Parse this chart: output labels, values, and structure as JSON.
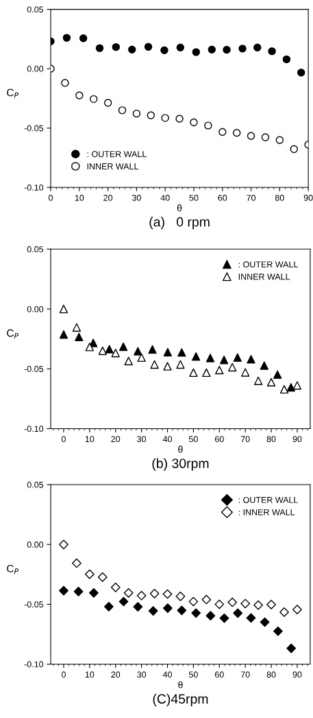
{
  "chart_data": [
    {
      "type": "scatter",
      "title": "(a)   0 rpm",
      "xlabel": "θ",
      "ylabel": "C$_{P}$",
      "xlim": [
        0,
        90
      ],
      "ylim": [
        -0.1,
        0.05
      ],
      "xticks": [
        0,
        10,
        20,
        30,
        40,
        50,
        60,
        70,
        80,
        90
      ],
      "yticks": [
        {
          "value": -0.1,
          "label": "-0.10"
        },
        {
          "value": -0.05,
          "label": "-0.05"
        },
        {
          "value": 0,
          "label": "0.00"
        },
        {
          "value": 0.05,
          "label": "0.05"
        }
      ],
      "grid": false,
      "legend": "lower left",
      "series": [
        {
          "name": ": OUTER WALL",
          "color": "#000000",
          "marker": "circle",
          "x": [
            0,
            5.6,
            11.4,
            17.1,
            22.8,
            28.4,
            34.1,
            39.7,
            45.3,
            50.8,
            56.3,
            61.5,
            67.0,
            72.2,
            77.3,
            82.4,
            87.5
          ],
          "values": [
            0.023,
            0.026,
            0.0256,
            0.0173,
            0.0182,
            0.0161,
            0.0184,
            0.0155,
            0.0178,
            0.014,
            0.0161,
            0.0159,
            0.0169,
            0.0178,
            0.0147,
            0.0079,
            -0.0033
          ]
        },
        {
          "name": "INNER WALL",
          "color": "#ffffff",
          "marker": "circle",
          "x": [
            0,
            5,
            10,
            15,
            20,
            25,
            30,
            35,
            40,
            45,
            50,
            55,
            60,
            65,
            70,
            75,
            80,
            85,
            90
          ],
          "values": [
            0.0,
            -0.012,
            -0.0225,
            -0.0256,
            -0.0287,
            -0.035,
            -0.0378,
            -0.0393,
            -0.0415,
            -0.0422,
            -0.0452,
            -0.0479,
            -0.0533,
            -0.054,
            -0.0566,
            -0.0578,
            -0.0601,
            -0.0678,
            -0.064
          ]
        }
      ]
    },
    {
      "type": "scatter",
      "title": "(b) 30rpm",
      "xlabel": "θ",
      "ylabel": "C$_{P}$",
      "xlim": [
        -5,
        95
      ],
      "ylim": [
        -0.1,
        0.05
      ],
      "xticks": [
        0,
        10,
        20,
        30,
        40,
        50,
        60,
        70,
        80,
        90
      ],
      "yticks": [
        {
          "value": -0.1,
          "label": "-0.10"
        },
        {
          "value": -0.05,
          "label": "-0.05"
        },
        {
          "value": 0,
          "label": "0.00"
        },
        {
          "value": 0.05,
          "label": "0.05"
        }
      ],
      "grid": false,
      "legend": "upper right",
      "series": [
        {
          "name": ": OUTER WALL",
          "color": "#000000",
          "marker": "triangle",
          "x": [
            0,
            5.9,
            11.4,
            17.6,
            23.0,
            28.6,
            34.2,
            40.1,
            45.5,
            51.0,
            56.5,
            61.8,
            67.0,
            72.2,
            77.3,
            82.4,
            87.6
          ],
          "values": [
            -0.0213,
            -0.0234,
            -0.0284,
            -0.0336,
            -0.0315,
            -0.0353,
            -0.0338,
            -0.0361,
            -0.0363,
            -0.0397,
            -0.041,
            -0.0425,
            -0.0405,
            -0.042,
            -0.0473,
            -0.0548,
            -0.0655
          ]
        },
        {
          "name": "INNER WALL",
          "color": "#ffffff",
          "marker": "triangle",
          "x": [
            0,
            5,
            10,
            15,
            20,
            25,
            30,
            35,
            40,
            45,
            50,
            55,
            60,
            65,
            70,
            75,
            80,
            85,
            90
          ],
          "values": [
            0.0,
            -0.0154,
            -0.0317,
            -0.0349,
            -0.0368,
            -0.0435,
            -0.0406,
            -0.0464,
            -0.0479,
            -0.0464,
            -0.0532,
            -0.0532,
            -0.051,
            -0.0487,
            -0.053,
            -0.06,
            -0.0612,
            -0.0671,
            -0.0639
          ]
        }
      ]
    },
    {
      "type": "scatter",
      "title": "(C)45rpm",
      "xlabel": "θ",
      "ylabel": "C$_{P}$",
      "xlim": [
        -5,
        95
      ],
      "ylim": [
        -0.1,
        0.05
      ],
      "xticks": [
        0,
        10,
        20,
        30,
        40,
        50,
        60,
        70,
        80,
        90
      ],
      "yticks": [
        {
          "value": -0.1,
          "label": "-0.10"
        },
        {
          "value": -0.05,
          "label": "-0.05"
        },
        {
          "value": 0,
          "label": "0.00"
        },
        {
          "value": 0.05,
          "label": "0.05"
        }
      ],
      "grid": false,
      "legend": "upper right",
      "series": [
        {
          "name": ": OUTER WALL",
          "color": "#000000",
          "marker": "diamond",
          "x": [
            0,
            5.7,
            11.6,
            17.4,
            23.1,
            28.6,
            34.5,
            40.1,
            45.5,
            51.0,
            56.6,
            61.9,
            67.1,
            72.2,
            77.5,
            82.6,
            87.7
          ],
          "values": [
            -0.0386,
            -0.0393,
            -0.0405,
            -0.0519,
            -0.0477,
            -0.0521,
            -0.0555,
            -0.0532,
            -0.0551,
            -0.0573,
            -0.0595,
            -0.0616,
            -0.0574,
            -0.0614,
            -0.0649,
            -0.0725,
            -0.0868
          ]
        },
        {
          "name": ": INNER WALL",
          "color": "#ffffff",
          "marker": "diamond",
          "x": [
            0,
            5,
            10,
            15,
            20,
            25,
            30,
            35,
            40,
            45,
            50,
            55,
            60,
            65,
            70,
            75,
            80,
            85,
            90
          ],
          "values": [
            0.0,
            -0.0156,
            -0.0248,
            -0.0273,
            -0.0359,
            -0.0405,
            -0.0427,
            -0.041,
            -0.0414,
            -0.0433,
            -0.0477,
            -0.046,
            -0.05,
            -0.0483,
            -0.0494,
            -0.0506,
            -0.0502,
            -0.0565,
            -0.0544
          ]
        }
      ]
    }
  ]
}
